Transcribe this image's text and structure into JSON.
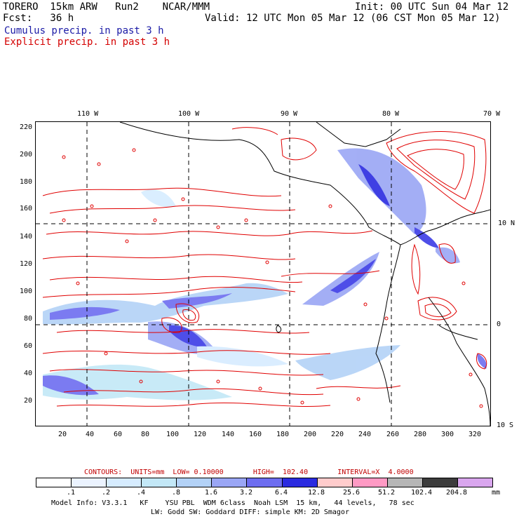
{
  "header": {
    "model_line": "TORERO  15km ARW   Run2    NCAR/MMM",
    "init": "Init: 00 UTC Sun 04 Mar 12",
    "fcst": "Fcst:   36 h",
    "valid": "Valid: 12 UTC Mon 05 Mar 12 (06 CST Mon 05 Mar 12)",
    "field1": "Cumulus precip. in past 3 h",
    "field2": "Explicit precip. in past 3 h"
  },
  "colors": {
    "cumulus_text": "#1a1aa6",
    "explicit_text": "#d40000",
    "contour": "#e00000",
    "land": "#000000"
  },
  "top_lon_labels": [
    "110 W",
    "100 W",
    "90 W",
    "80 W",
    "70 W"
  ],
  "right_lat_labels": [
    "10 N",
    "0",
    "10 S"
  ],
  "y_ticks": [
    "220",
    "200",
    "180",
    "160",
    "140",
    "120",
    "100",
    "80",
    "60",
    "40",
    "20"
  ],
  "x_ticks": [
    "20",
    "40",
    "60",
    "80",
    "100",
    "120",
    "140",
    "160",
    "180",
    "200",
    "220",
    "240",
    "260",
    "280",
    "300",
    "320"
  ],
  "contour_info": "CONTOURS:  UNITS=mm  LOW= 0.10000       HIGH=  102.40       INTERVAL=X  4.0000",
  "colorbar": {
    "labels": [
      ".1",
      ".2",
      ".4",
      ".8",
      "1.6",
      "3.2",
      "6.4",
      "12.8",
      "25.6",
      "51.2",
      "102.4",
      "204.8"
    ],
    "unit": "mm",
    "colors": [
      "#ffffff",
      "#ebf3ff",
      "#d6ecff",
      "#c3e8f7",
      "#b3d2f7",
      "#9aa6f5",
      "#6d6df0",
      "#2b2be0",
      "#ffcccc",
      "#ff9ac4",
      "#b6b6b6",
      "#3c3c3c",
      "#d9a6ee"
    ]
  },
  "footer": {
    "line1": "Model Info: V3.3.1   KF    YSU PBL  WDM 6class  Noah LSM  15 km,   44 levels,   78 sec",
    "line2": "LW: Godd SW: Goddard DIFF: simple KM: 2D Smagor"
  }
}
